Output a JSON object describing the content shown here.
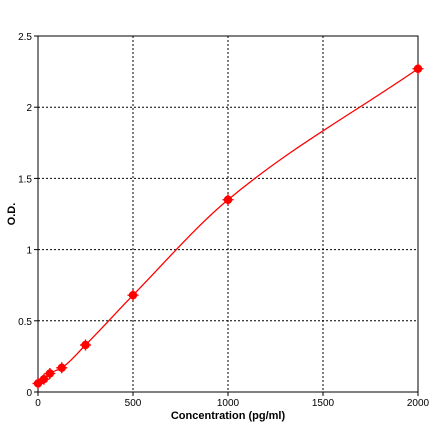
{
  "chart_data": {
    "type": "line",
    "title": "",
    "xlabel": "Concentration (pg/ml)",
    "ylabel": "O.D.",
    "xlim": [
      0,
      2000
    ],
    "ylim": [
      0,
      2.5
    ],
    "x_ticks": [
      0,
      500,
      1000,
      1500,
      2000
    ],
    "y_ticks": [
      0,
      0.5,
      1,
      1.5,
      2,
      2.5
    ],
    "x_tick_labels": [
      "0",
      "500",
      "1000",
      "1500",
      "2000"
    ],
    "y_tick_labels": [
      "0",
      "0.5",
      "1",
      "1.5",
      "2",
      "2.5"
    ],
    "grid": true,
    "grid_style": "dotted",
    "series": [
      {
        "color": "#ff0000",
        "marker": "circle",
        "points": [
          {
            "x": 0,
            "y": 0.06
          },
          {
            "x": 31.25,
            "y": 0.09
          },
          {
            "x": 62.5,
            "y": 0.13
          },
          {
            "x": 125,
            "y": 0.17
          },
          {
            "x": 250,
            "y": 0.33
          },
          {
            "x": 500,
            "y": 0.68
          },
          {
            "x": 1000,
            "y": 1.35
          },
          {
            "x": 2000,
            "y": 2.27
          }
        ]
      }
    ]
  }
}
